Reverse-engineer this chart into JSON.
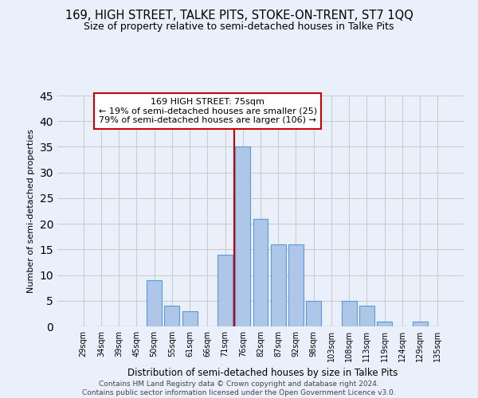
{
  "title": "169, HIGH STREET, TALKE PITS, STOKE-ON-TRENT, ST7 1QQ",
  "subtitle": "Size of property relative to semi-detached houses in Talke Pits",
  "xlabel": "Distribution of semi-detached houses by size in Talke Pits",
  "ylabel": "Number of semi-detached properties",
  "footer_line1": "Contains HM Land Registry data © Crown copyright and database right 2024.",
  "footer_line2": "Contains public sector information licensed under the Open Government Licence v3.0.",
  "categories": [
    "29sqm",
    "34sqm",
    "39sqm",
    "45sqm",
    "50sqm",
    "55sqm",
    "61sqm",
    "66sqm",
    "71sqm",
    "76sqm",
    "82sqm",
    "87sqm",
    "92sqm",
    "98sqm",
    "103sqm",
    "108sqm",
    "113sqm",
    "119sqm",
    "124sqm",
    "129sqm",
    "135sqm"
  ],
  "values": [
    0,
    0,
    0,
    0,
    9,
    4,
    3,
    0,
    14,
    35,
    21,
    16,
    16,
    5,
    0,
    5,
    4,
    1,
    0,
    1,
    0
  ],
  "bar_color": "#aec6e8",
  "bar_edge_color": "#5b9bd5",
  "highlight_line_color": "#cc0000",
  "annotation_text": "169 HIGH STREET: 75sqm\n← 19% of semi-detached houses are smaller (25)\n79% of semi-detached houses are larger (106) →",
  "annotation_box_color": "#ffffff",
  "annotation_box_edge_color": "#cc0000",
  "ylim": [
    0,
    45
  ],
  "yticks": [
    0,
    5,
    10,
    15,
    20,
    25,
    30,
    35,
    40,
    45
  ],
  "grid_color": "#cccccc",
  "bg_color": "#eaf0fb",
  "title_fontsize": 10.5,
  "subtitle_fontsize": 9
}
